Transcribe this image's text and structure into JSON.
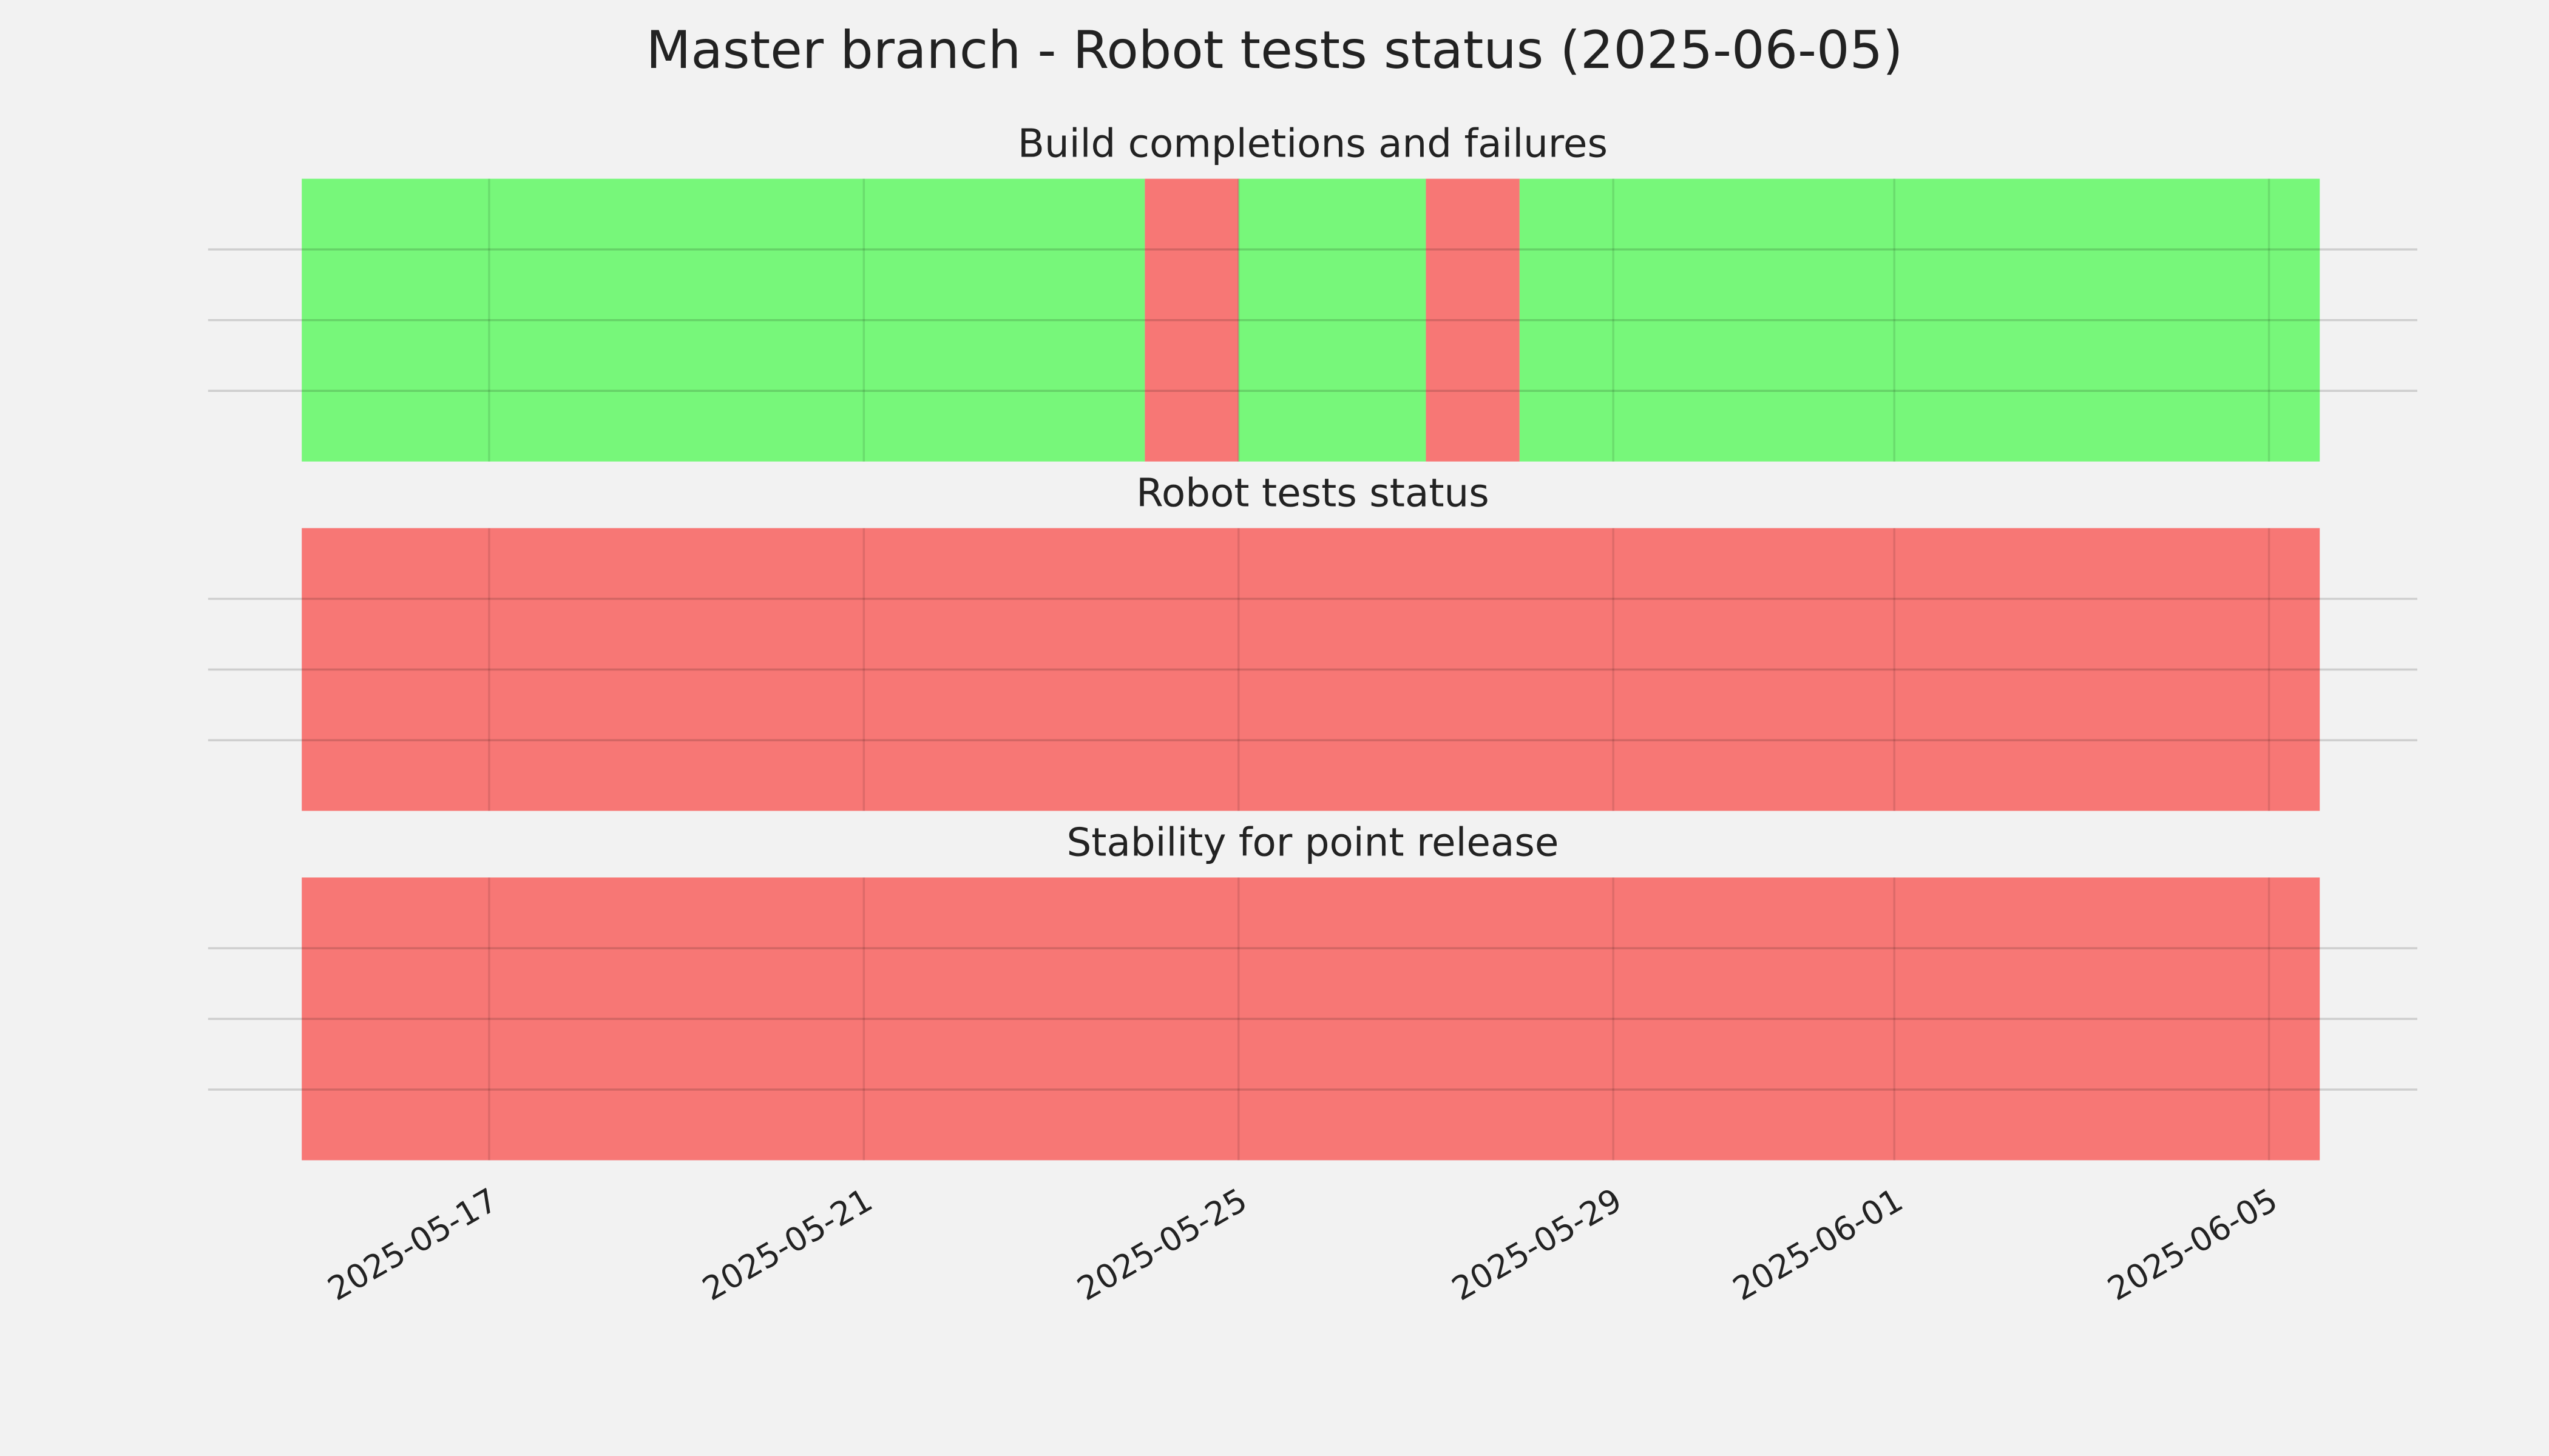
{
  "title": "Master branch - Robot tests status (2025-06-05)",
  "chart_data": [
    {
      "type": "timeline",
      "title": "Build completions and failures",
      "xlim": [
        "2025-05-14",
        "2025-06-06T14:00"
      ],
      "xticks": [
        "2025-05-17",
        "2025-05-21",
        "2025-05-25",
        "2025-05-29",
        "2025-06-01",
        "2025-06-05"
      ],
      "ylim": [
        0,
        1
      ],
      "yticks": [
        0.25,
        0.5,
        0.75
      ],
      "grid": true,
      "spans": [
        {
          "start": "2025-05-15",
          "end": "2025-05-24",
          "color": "#77f77a"
        },
        {
          "start": "2025-05-24",
          "end": "2025-05-25",
          "color": "#f77775"
        },
        {
          "start": "2025-05-25",
          "end": "2025-05-27",
          "color": "#77f77a"
        },
        {
          "start": "2025-05-27",
          "end": "2025-05-28",
          "color": "#f77775"
        },
        {
          "start": "2025-05-28",
          "end": "2025-06-05T13:00",
          "color": "#77f77a"
        }
      ]
    },
    {
      "type": "timeline",
      "title": "Robot tests status",
      "xlim": [
        "2025-05-14",
        "2025-06-06T14:00"
      ],
      "xticks": [
        "2025-05-17",
        "2025-05-21",
        "2025-05-25",
        "2025-05-29",
        "2025-06-01",
        "2025-06-05"
      ],
      "ylim": [
        0,
        1
      ],
      "yticks": [
        0.25,
        0.5,
        0.75
      ],
      "grid": true,
      "spans": [
        {
          "start": "2025-05-15",
          "end": "2025-06-05T13:00",
          "color": "#f77775"
        }
      ]
    },
    {
      "type": "timeline",
      "title": "Stability for point release",
      "xlim": [
        "2025-05-14",
        "2025-06-06T14:00"
      ],
      "xticks": [
        "2025-05-17",
        "2025-05-21",
        "2025-05-25",
        "2025-05-29",
        "2025-06-01",
        "2025-06-05"
      ],
      "ylim": [
        0,
        1
      ],
      "yticks": [
        0.25,
        0.5,
        0.75
      ],
      "grid": true,
      "spans": [
        {
          "start": "2025-05-15",
          "end": "2025-06-05T13:00",
          "color": "#f77775"
        }
      ]
    }
  ]
}
